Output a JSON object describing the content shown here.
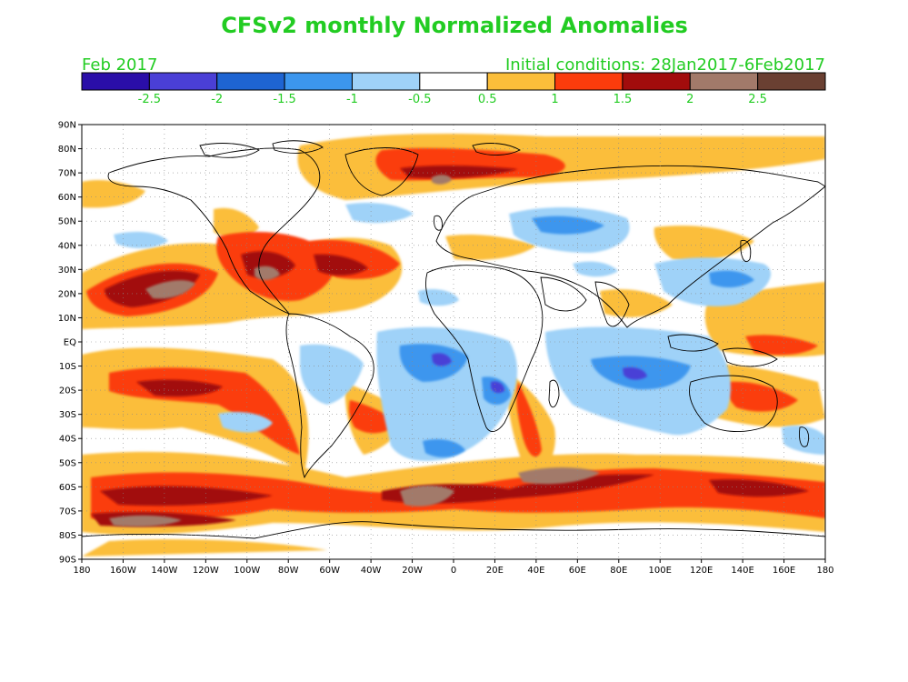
{
  "header": {
    "title": "CFSv2 monthly Normalized Anomalies",
    "month_label": "Feb 2017",
    "init_label": "Initial conditions: 28Jan2017-6Feb2017"
  },
  "colorbar": {
    "colors": [
      "#2a0ea8",
      "#4a3fd6",
      "#1e64d2",
      "#3c96ee",
      "#9fd2f8",
      "#ffffff",
      "#fbbe3a",
      "#fb3c0c",
      "#a20c0c",
      "#a27a6a",
      "#6a4032"
    ],
    "labels": [
      "-2.5",
      "-2",
      "-1.5",
      "-1",
      "-0.5",
      "0.5",
      "1",
      "1.5",
      "2",
      "2.5"
    ]
  },
  "map": {
    "lat_labels": [
      "90N",
      "80N",
      "70N",
      "60N",
      "50N",
      "40N",
      "30N",
      "20N",
      "10N",
      "EQ",
      "10S",
      "20S",
      "30S",
      "40S",
      "50S",
      "60S",
      "70S",
      "80S",
      "90S"
    ],
    "lon_labels": [
      "180",
      "160W",
      "140W",
      "120W",
      "100W",
      "80W",
      "60W",
      "40W",
      "20W",
      "0",
      "20E",
      "40E",
      "60E",
      "80E",
      "100E",
      "120E",
      "140E",
      "160E",
      "180"
    ]
  }
}
